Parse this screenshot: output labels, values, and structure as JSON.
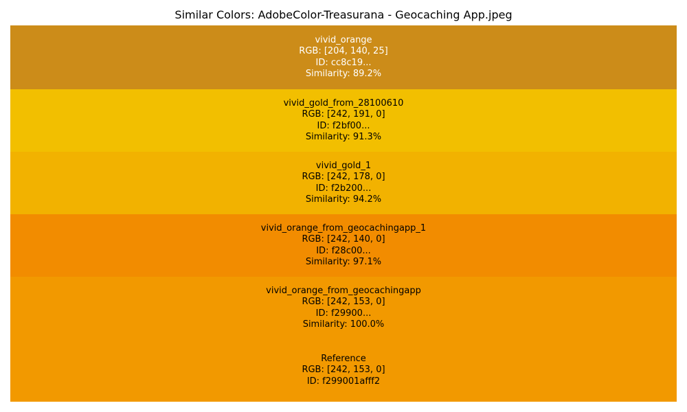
{
  "title": "Similar Colors: AdobeColor-Treasurana - Geocaching App.jpeg",
  "chart_data": {
    "type": "bar",
    "title": "Similar Colors: AdobeColor-Treasurana - Geocaching App.jpeg",
    "axes_visible": false,
    "grid": false,
    "swatches": [
      {
        "name": "vivid_orange",
        "rgb_label": "RGB: [204, 140, 25]",
        "id_label": "ID: cc8c19...",
        "similarity_label": "Similarity: 89.2%",
        "rgb": [
          204,
          140,
          25
        ],
        "color": "#cc8c19",
        "text_color": "#ffffff",
        "similarity": 89.2
      },
      {
        "name": "vivid_gold_from_28100610",
        "rgb_label": "RGB: [242, 191, 0]",
        "id_label": "ID: f2bf00...",
        "similarity_label": "Similarity: 91.3%",
        "rgb": [
          242,
          191,
          0
        ],
        "color": "#f2bf00",
        "text_color": "#000000",
        "similarity": 91.3
      },
      {
        "name": "vivid_gold_1",
        "rgb_label": "RGB: [242, 178, 0]",
        "id_label": "ID: f2b200...",
        "similarity_label": "Similarity: 94.2%",
        "rgb": [
          242,
          178,
          0
        ],
        "color": "#f2b200",
        "text_color": "#000000",
        "similarity": 94.2
      },
      {
        "name": "vivid_orange_from_geocachingapp_1",
        "rgb_label": "RGB: [242, 140, 0]",
        "id_label": "ID: f28c00...",
        "similarity_label": "Similarity: 97.1%",
        "rgb": [
          242,
          140,
          0
        ],
        "color": "#f28c00",
        "text_color": "#000000",
        "similarity": 97.1
      },
      {
        "name": "vivid_orange_from_geocachingapp",
        "rgb_label": "RGB: [242, 153, 0]",
        "id_label": "ID: f29900...",
        "similarity_label": "Similarity: 100.0%",
        "rgb": [
          242,
          153,
          0
        ],
        "color": "#f29900",
        "text_color": "#000000",
        "similarity": 100.0
      }
    ],
    "reference": {
      "name": "Reference",
      "rgb_label": "RGB: [242, 153, 0]",
      "id_label": "ID: f299001afff2",
      "rgb": [
        242,
        153,
        0
      ],
      "color": "#f29900",
      "text_color": "#000000"
    }
  }
}
